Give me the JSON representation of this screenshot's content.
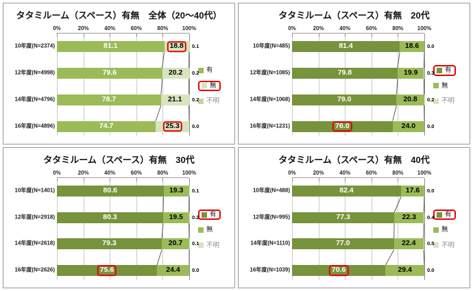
{
  "style": {
    "highlight_color": "#e60000",
    "grid_color": "#c9c9c9",
    "axis_color": "#9b9b9b",
    "series_line_color": "#595959",
    "panel_border": "#979797",
    "background": "#ffffff"
  },
  "chart_data": [
    {
      "type": "bar",
      "orientation": "horizontal",
      "stacked": true,
      "title": "タタミルーム（スペース）有無　全体（20～40代）",
      "categories": [
        "10年度(N=2374)",
        "12年度(N=4998)",
        "14年度(N=4796)",
        "16年度(N=4896)"
      ],
      "series": [
        {
          "name": "有",
          "color": "#9BBB59",
          "values": [
            81.1,
            79.6,
            78.7,
            74.7
          ]
        },
        {
          "name": "無",
          "color": "#D7E4BD",
          "values": [
            18.8,
            20.2,
            21.1,
            25.3
          ]
        },
        {
          "name": "不明",
          "color": "#C3D69B",
          "muted": true,
          "values": [
            0.1,
            0.2,
            0.2,
            0.0
          ]
        }
      ],
      "xlim": [
        0,
        100
      ],
      "tick_labels": [
        "0%",
        "20%",
        "40%",
        "60%",
        "80%",
        "100%"
      ],
      "legend_position": "right",
      "legend_boxed": "無",
      "value_highlights": [
        {
          "series": "無",
          "row": 0
        },
        {
          "series": "無",
          "row": 3
        }
      ]
    },
    {
      "type": "bar",
      "orientation": "horizontal",
      "stacked": true,
      "title": "タタミルーム（スペース）有無　20代",
      "categories": [
        "10年度(N=485)",
        "12年度(N=1085)",
        "14年度(N=1068)",
        "16年度(N=1231)"
      ],
      "series": [
        {
          "name": "有",
          "color": "#77933C",
          "values": [
            81.4,
            79.8,
            79.0,
            76.0
          ]
        },
        {
          "name": "無",
          "color": "#9BBB59",
          "values": [
            18.6,
            19.9,
            20.8,
            24.0
          ]
        },
        {
          "name": "不明",
          "color": "#D7E4BD",
          "muted": true,
          "values": [
            0.0,
            0.3,
            0.2,
            0.0
          ]
        }
      ],
      "xlim": [
        0,
        100
      ],
      "tick_labels": [
        "0%",
        "20%",
        "40%",
        "60%",
        "80%",
        "100%"
      ],
      "legend_position": "right",
      "legend_boxed": "有",
      "value_highlights": [
        {
          "series": "有",
          "row": 3
        }
      ]
    },
    {
      "type": "bar",
      "orientation": "horizontal",
      "stacked": true,
      "title": "タタミルーム（スペース）有無　30代",
      "categories": [
        "10年度(N=1401)",
        "12年度(N=2918)",
        "14年度(N=2618)",
        "16年度(N=2626)"
      ],
      "series": [
        {
          "name": "有",
          "color": "#77933C",
          "values": [
            80.6,
            80.3,
            79.3,
            75.6
          ]
        },
        {
          "name": "無",
          "color": "#9BBB59",
          "values": [
            19.3,
            19.5,
            20.7,
            24.4
          ]
        },
        {
          "name": "不明",
          "color": "#D7E4BD",
          "muted": true,
          "values": [
            0.1,
            0.2,
            0.1,
            0.0
          ]
        }
      ],
      "xlim": [
        0,
        100
      ],
      "tick_labels": [
        "0%",
        "20%",
        "40%",
        "60%",
        "80%",
        "100%"
      ],
      "legend_position": "right",
      "legend_boxed": "有",
      "value_highlights": [
        {
          "series": "有",
          "row": 3
        }
      ]
    },
    {
      "type": "bar",
      "orientation": "horizontal",
      "stacked": true,
      "title": "タタミルーム（スペース）有無　40代",
      "categories": [
        "10年度(N=488)",
        "12年度(N=995)",
        "14年度(N=1110)",
        "16年度(N=1039)"
      ],
      "series": [
        {
          "name": "有",
          "color": "#77933C",
          "values": [
            82.4,
            77.3,
            77.0,
            70.6
          ]
        },
        {
          "name": "無",
          "color": "#9BBB59",
          "values": [
            17.6,
            22.3,
            22.4,
            29.4
          ]
        },
        {
          "name": "不明",
          "color": "#D7E4BD",
          "muted": true,
          "values": [
            0.0,
            0.4,
            0.5,
            0.0
          ]
        }
      ],
      "xlim": [
        0,
        100
      ],
      "tick_labels": [
        "0%",
        "20%",
        "40%",
        "60%",
        "80%",
        "100%"
      ],
      "legend_position": "right",
      "legend_boxed": "有",
      "value_highlights": [
        {
          "series": "有",
          "row": 3
        }
      ]
    }
  ]
}
